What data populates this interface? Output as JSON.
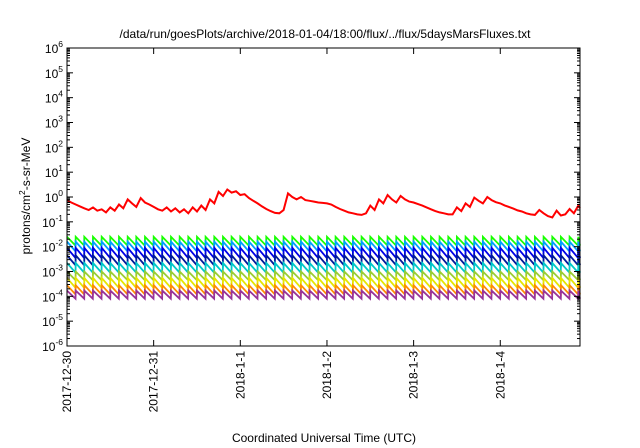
{
  "chart_data": {
    "type": "line",
    "title": "/data/run/goesPlots/archive/2018-01-04/18:00/flux/../flux/5daysMarsFluxes.txt",
    "xlabel": "Coordinated Universal Time (UTC)",
    "ylabel_parts": [
      "protons/cm",
      "2",
      "-s-sr-MeV"
    ],
    "y_scale": "log",
    "ylim": [
      1e-06,
      1000000.0
    ],
    "y_ticks": [
      {
        "base": "10",
        "exp": "-6",
        "value": 1e-06
      },
      {
        "base": "10",
        "exp": "-5",
        "value": 1e-05
      },
      {
        "base": "10",
        "exp": "-4",
        "value": 0.0001
      },
      {
        "base": "10",
        "exp": "-3",
        "value": 0.001
      },
      {
        "base": "10",
        "exp": "-2",
        "value": 0.01
      },
      {
        "base": "10",
        "exp": "-1",
        "value": 0.1
      },
      {
        "base": "10",
        "exp": "0",
        "value": 1
      },
      {
        "base": "10",
        "exp": "1",
        "value": 10
      },
      {
        "base": "10",
        "exp": "2",
        "value": 100
      },
      {
        "base": "10",
        "exp": "3",
        "value": 1000
      },
      {
        "base": "10",
        "exp": "4",
        "value": 10000
      },
      {
        "base": "10",
        "exp": "5",
        "value": 100000
      },
      {
        "base": "10",
        "exp": "6",
        "value": 1000000
      }
    ],
    "x_unit": "day",
    "x_range_days": [
      0,
      5.92
    ],
    "x_ticks": [
      {
        "label": "2017-12-30",
        "day": 0
      },
      {
        "label": "2017-12-31",
        "day": 1
      },
      {
        "label": "2018-1-1",
        "day": 2
      },
      {
        "label": "2018-1-2",
        "day": 3
      },
      {
        "label": "2018-1-3",
        "day": 4
      },
      {
        "label": "2018-1-4",
        "day": 5
      }
    ],
    "grid": false,
    "legend": "none",
    "series": [
      {
        "color": "#ff0000",
        "points": [
          [
            0.0,
            0.75
          ],
          [
            0.05,
            0.6
          ],
          [
            0.1,
            0.5
          ],
          [
            0.15,
            0.42
          ],
          [
            0.2,
            0.35
          ],
          [
            0.25,
            0.3
          ],
          [
            0.3,
            0.38
          ],
          [
            0.35,
            0.28
          ],
          [
            0.4,
            0.32
          ],
          [
            0.45,
            0.24
          ],
          [
            0.5,
            0.38
          ],
          [
            0.55,
            0.28
          ],
          [
            0.6,
            0.5
          ],
          [
            0.65,
            0.35
          ],
          [
            0.7,
            0.8
          ],
          [
            0.75,
            0.55
          ],
          [
            0.8,
            0.4
          ],
          [
            0.85,
            0.9
          ],
          [
            0.9,
            0.6
          ],
          [
            0.95,
            0.5
          ],
          [
            1.0,
            0.4
          ],
          [
            1.05,
            0.32
          ],
          [
            1.1,
            0.28
          ],
          [
            1.15,
            0.38
          ],
          [
            1.2,
            0.26
          ],
          [
            1.25,
            0.35
          ],
          [
            1.3,
            0.24
          ],
          [
            1.35,
            0.32
          ],
          [
            1.4,
            0.22
          ],
          [
            1.45,
            0.38
          ],
          [
            1.5,
            0.26
          ],
          [
            1.55,
            0.45
          ],
          [
            1.6,
            0.3
          ],
          [
            1.65,
            0.8
          ],
          [
            1.7,
            0.55
          ],
          [
            1.75,
            1.6
          ],
          [
            1.8,
            1.1
          ],
          [
            1.85,
            2.0
          ],
          [
            1.9,
            1.5
          ],
          [
            1.95,
            1.7
          ],
          [
            2.0,
            1.2
          ],
          [
            2.05,
            1.3
          ],
          [
            2.1,
            0.9
          ],
          [
            2.15,
            0.7
          ],
          [
            2.2,
            0.55
          ],
          [
            2.25,
            0.42
          ],
          [
            2.3,
            0.33
          ],
          [
            2.35,
            0.27
          ],
          [
            2.4,
            0.23
          ],
          [
            2.45,
            0.22
          ],
          [
            2.5,
            0.3
          ],
          [
            2.55,
            1.4
          ],
          [
            2.6,
            1.0
          ],
          [
            2.65,
            0.8
          ],
          [
            2.7,
            1.0
          ],
          [
            2.75,
            0.75
          ],
          [
            2.8,
            0.7
          ],
          [
            2.85,
            0.65
          ],
          [
            2.9,
            0.6
          ],
          [
            2.95,
            0.58
          ],
          [
            3.0,
            0.55
          ],
          [
            3.05,
            0.5
          ],
          [
            3.1,
            0.4
          ],
          [
            3.15,
            0.33
          ],
          [
            3.2,
            0.28
          ],
          [
            3.25,
            0.24
          ],
          [
            3.3,
            0.22
          ],
          [
            3.35,
            0.2
          ],
          [
            3.4,
            0.19
          ],
          [
            3.45,
            0.22
          ],
          [
            3.5,
            0.45
          ],
          [
            3.55,
            0.3
          ],
          [
            3.6,
            0.8
          ],
          [
            3.65,
            0.55
          ],
          [
            3.7,
            1.2
          ],
          [
            3.75,
            0.8
          ],
          [
            3.8,
            0.6
          ],
          [
            3.85,
            1.1
          ],
          [
            3.9,
            0.8
          ],
          [
            3.95,
            0.65
          ],
          [
            4.0,
            0.6
          ],
          [
            4.05,
            0.52
          ],
          [
            4.1,
            0.45
          ],
          [
            4.15,
            0.38
          ],
          [
            4.2,
            0.32
          ],
          [
            4.25,
            0.27
          ],
          [
            4.3,
            0.24
          ],
          [
            4.35,
            0.22
          ],
          [
            4.4,
            0.2
          ],
          [
            4.45,
            0.2
          ],
          [
            4.5,
            0.38
          ],
          [
            4.55,
            0.27
          ],
          [
            4.6,
            0.55
          ],
          [
            4.65,
            0.4
          ],
          [
            4.7,
            0.95
          ],
          [
            4.75,
            0.7
          ],
          [
            4.8,
            0.55
          ],
          [
            4.85,
            1.0
          ],
          [
            4.9,
            0.75
          ],
          [
            4.95,
            0.62
          ],
          [
            5.0,
            0.55
          ],
          [
            5.05,
            0.46
          ],
          [
            5.1,
            0.4
          ],
          [
            5.15,
            0.34
          ],
          [
            5.2,
            0.29
          ],
          [
            5.25,
            0.26
          ],
          [
            5.3,
            0.22
          ],
          [
            5.35,
            0.2
          ],
          [
            5.4,
            0.19
          ],
          [
            5.45,
            0.3
          ],
          [
            5.5,
            0.22
          ],
          [
            5.55,
            0.17
          ],
          [
            5.6,
            0.15
          ],
          [
            5.65,
            0.28
          ],
          [
            5.7,
            0.18
          ],
          [
            5.75,
            0.2
          ],
          [
            5.8,
            0.33
          ],
          [
            5.85,
            0.22
          ],
          [
            5.9,
            0.45
          ],
          [
            5.92,
            0.35
          ]
        ]
      },
      {
        "color": "#1aff00",
        "sawtooth": {
          "period": 0.1,
          "peak": 0.025,
          "trough": 0.011
        }
      },
      {
        "color": "#00a0ff",
        "sawtooth": {
          "period": 0.1,
          "peak": 0.016,
          "trough": 0.0065
        }
      },
      {
        "color": "#0000e6",
        "sawtooth": {
          "period": 0.1,
          "peak": 0.009,
          "trough": 0.0035
        }
      },
      {
        "color": "#001a99",
        "sawtooth": {
          "period": 0.1,
          "peak": 0.0045,
          "trough": 0.0018
        }
      },
      {
        "color": "#00c9c9",
        "sawtooth": {
          "period": 0.1,
          "peak": 0.0022,
          "trough": 0.0009
        }
      },
      {
        "color": "#9acd32",
        "sawtooth": {
          "period": 0.1,
          "peak": 0.001,
          "trough": 0.00045
        }
      },
      {
        "color": "#e6e600",
        "sawtooth": {
          "period": 0.1,
          "peak": 0.00055,
          "trough": 0.00022
        }
      },
      {
        "color": "#ff8c00",
        "sawtooth": {
          "period": 0.1,
          "peak": 0.00028,
          "trough": 0.00012
        }
      },
      {
        "color": "#993399",
        "sawtooth": {
          "period": 0.1,
          "peak": 0.00017,
          "trough": 8e-05
        }
      }
    ]
  }
}
